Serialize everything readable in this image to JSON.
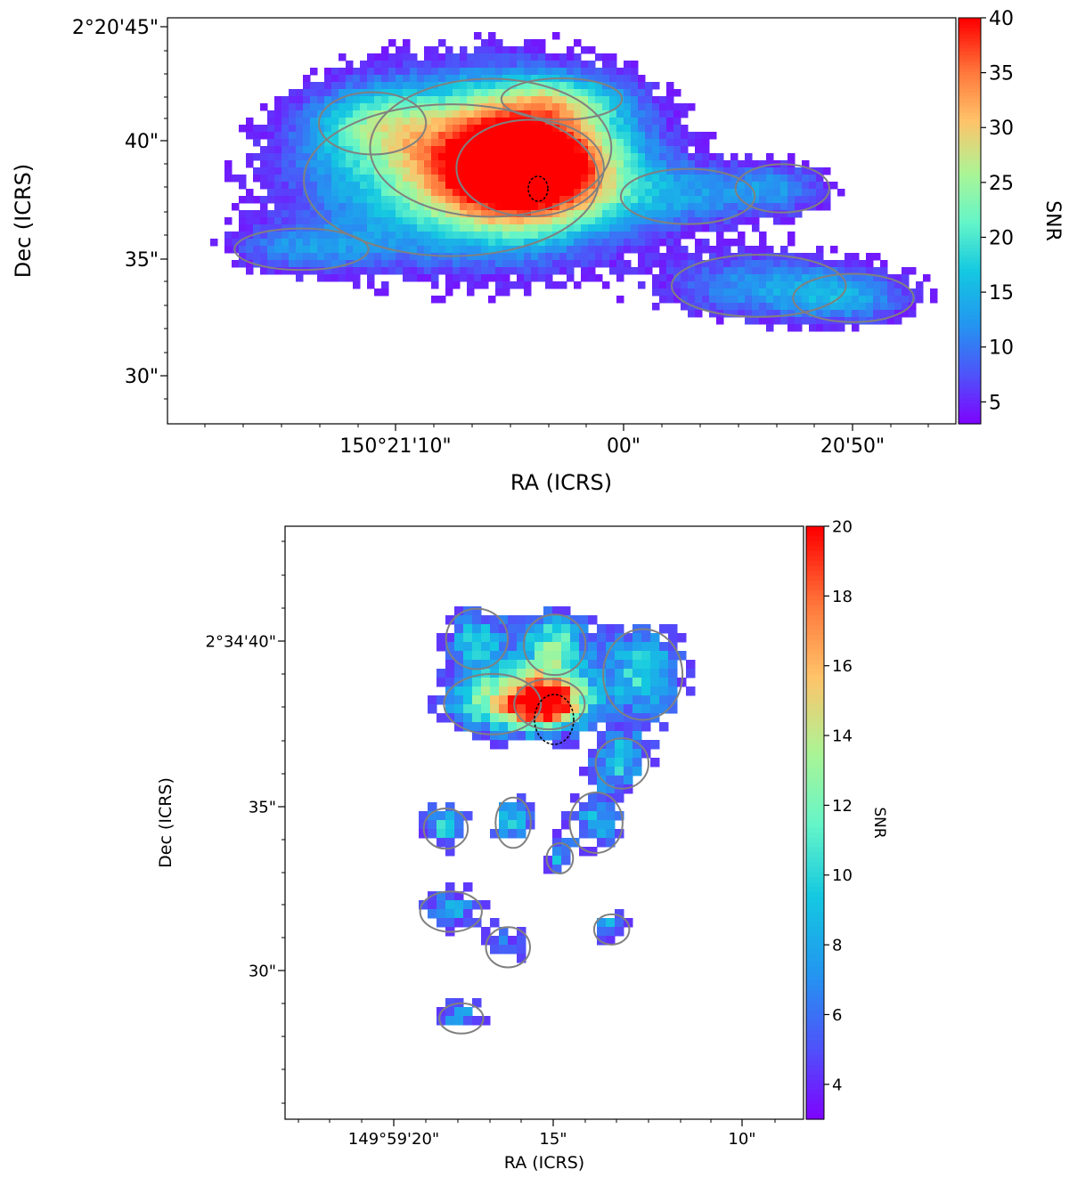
{
  "chart_data": [
    {
      "type": "heatmap",
      "xlabel": "RA (ICRS)",
      "ylabel": "Dec (ICRS)",
      "x_ticks": [
        "150°21'10\"",
        "00\"",
        "20'50\""
      ],
      "y_ticks": [
        "2°20'45\"",
        "40\"",
        "35\"",
        "30\""
      ],
      "colorbar": {
        "label": "SNR",
        "range": [
          3,
          40
        ],
        "ticks": [
          "5",
          "10",
          "15",
          "20",
          "25",
          "30",
          "35",
          "40"
        ],
        "tick_values": [
          5,
          10,
          15,
          20,
          25,
          30,
          35,
          40
        ]
      },
      "colormap": "rainbow",
      "peak_snr": 40,
      "contours": "gray",
      "beam": "black dashed ellipse at peak",
      "blobs": [
        {
          "x": 0.46,
          "y": 0.63,
          "sx": 0.11,
          "sy": 0.14,
          "snr": 37
        },
        {
          "x": 0.36,
          "y": 0.6,
          "sx": 0.22,
          "sy": 0.22,
          "snr": 14
        },
        {
          "x": 0.41,
          "y": 0.68,
          "sx": 0.18,
          "sy": 0.2,
          "snr": 14
        },
        {
          "x": 0.17,
          "y": 0.43,
          "sx": 0.1,
          "sy": 0.06,
          "snr": 9
        },
        {
          "x": 0.26,
          "y": 0.74,
          "sx": 0.08,
          "sy": 0.09,
          "snr": 11
        },
        {
          "x": 0.66,
          "y": 0.56,
          "sx": 0.1,
          "sy": 0.08,
          "snr": 9
        },
        {
          "x": 0.78,
          "y": 0.58,
          "sx": 0.07,
          "sy": 0.07,
          "snr": 10
        },
        {
          "x": 0.75,
          "y": 0.34,
          "sx": 0.13,
          "sy": 0.09,
          "snr": 11
        },
        {
          "x": 0.87,
          "y": 0.31,
          "sx": 0.09,
          "sy": 0.07,
          "snr": 11
        },
        {
          "x": 0.5,
          "y": 0.8,
          "sx": 0.09,
          "sy": 0.06,
          "snr": 10
        }
      ]
    },
    {
      "type": "heatmap",
      "xlabel": "RA (ICRS)",
      "ylabel": "Dec (ICRS)",
      "x_ticks": [
        "149°59'20\"",
        "15\"",
        "10\""
      ],
      "y_ticks": [
        "2°34'40\"",
        "35\"",
        "30\""
      ],
      "colorbar": {
        "label": "SNR",
        "range": [
          3,
          20
        ],
        "ticks": [
          "4",
          "6",
          "8",
          "10",
          "12",
          "14",
          "16",
          "18",
          "20"
        ],
        "tick_values": [
          4,
          6,
          8,
          10,
          12,
          14,
          16,
          18,
          20
        ]
      },
      "colormap": "rainbow",
      "peak_snr": 20,
      "contours": "gray",
      "beam": "black dashed ellipse at peak",
      "blobs": [
        {
          "x": 0.51,
          "y": 0.7,
          "sx": 0.08,
          "sy": 0.05,
          "snr": 19
        },
        {
          "x": 0.4,
          "y": 0.7,
          "sx": 0.11,
          "sy": 0.06,
          "snr": 11
        },
        {
          "x": 0.52,
          "y": 0.8,
          "sx": 0.07,
          "sy": 0.06,
          "snr": 11
        },
        {
          "x": 0.37,
          "y": 0.81,
          "sx": 0.07,
          "sy": 0.06,
          "snr": 9
        },
        {
          "x": 0.69,
          "y": 0.75,
          "sx": 0.09,
          "sy": 0.09,
          "snr": 10
        },
        {
          "x": 0.65,
          "y": 0.6,
          "sx": 0.06,
          "sy": 0.05,
          "snr": 9
        },
        {
          "x": 0.31,
          "y": 0.49,
          "sx": 0.05,
          "sy": 0.04,
          "snr": 10
        },
        {
          "x": 0.44,
          "y": 0.5,
          "sx": 0.04,
          "sy": 0.05,
          "snr": 9
        },
        {
          "x": 0.6,
          "y": 0.5,
          "sx": 0.06,
          "sy": 0.06,
          "snr": 8
        },
        {
          "x": 0.32,
          "y": 0.35,
          "sx": 0.07,
          "sy": 0.04,
          "snr": 8
        },
        {
          "x": 0.63,
          "y": 0.32,
          "sx": 0.04,
          "sy": 0.03,
          "snr": 8
        },
        {
          "x": 0.34,
          "y": 0.17,
          "sx": 0.05,
          "sy": 0.03,
          "snr": 8
        },
        {
          "x": 0.43,
          "y": 0.29,
          "sx": 0.05,
          "sy": 0.04,
          "snr": 6
        },
        {
          "x": 0.53,
          "y": 0.44,
          "sx": 0.03,
          "sy": 0.03,
          "snr": 8
        }
      ]
    }
  ]
}
